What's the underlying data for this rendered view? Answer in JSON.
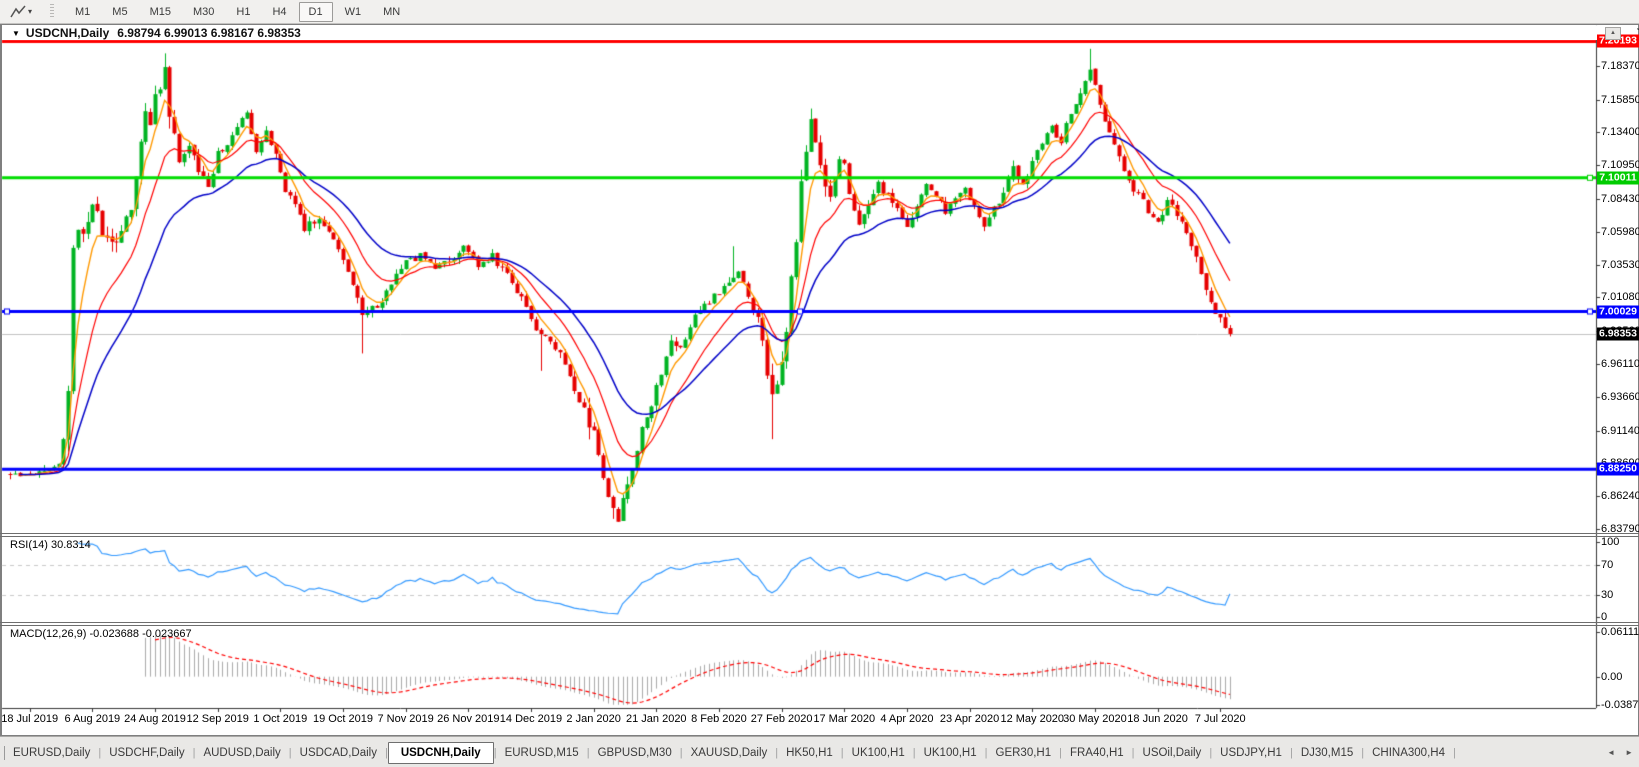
{
  "toolbar": {
    "timeframes": [
      "M1",
      "M5",
      "M15",
      "M30",
      "H1",
      "H4",
      "D1",
      "W1",
      "MN"
    ],
    "active_timeframe": "D1"
  },
  "header": {
    "title": "USDCNH,Daily",
    "ohlc": "6.98794 6.99013 6.98167 6.98353",
    "collapse_icon": "triangle-down"
  },
  "chart_data": {
    "type": "candlestick",
    "symbol": "USDCNH",
    "timeframe": "Daily",
    "open": 6.98794,
    "high": 6.99013,
    "low": 6.98167,
    "close": 6.98353,
    "ylim": [
      6.8379,
      7.2082
    ],
    "price_axis_ticks": [
      "7.20820",
      "7.18370",
      "7.15850",
      "7.13400",
      "7.10950",
      "7.08430",
      "7.05980",
      "7.03530",
      "7.01080",
      "6.98560",
      "6.96110",
      "6.93660",
      "6.91140",
      "6.88690",
      "6.86240",
      "6.83790"
    ],
    "price_tags": [
      {
        "text": "7.20193",
        "price": 7.20193,
        "bg": "#ff0000"
      },
      {
        "text": "7.10011",
        "price": 7.10011,
        "bg": "#00cc00"
      },
      {
        "text": "7.00029",
        "price": 7.00029,
        "bg": "#0000ff"
      },
      {
        "text": "6.98353",
        "price": 6.98353,
        "bg": "#000000"
      },
      {
        "text": "6.88250",
        "price": 6.8825,
        "bg": "#0000ff"
      }
    ],
    "hlines": [
      {
        "price": 7.20193,
        "color": "#ff0000",
        "width": 3
      },
      {
        "price": 7.10011,
        "color": "#00dd00",
        "width": 3
      },
      {
        "price": 7.00029,
        "color": "#0000ff",
        "width": 3
      },
      {
        "price": 6.8825,
        "color": "#0000ff",
        "width": 3
      }
    ],
    "current_price_line": {
      "price": 6.98353,
      "color": "#c0c0c0"
    },
    "x_labels": [
      "18 Jul 2019",
      "6 Aug 2019",
      "24 Aug 2019",
      "12 Sep 2019",
      "1 Oct 2019",
      "19 Oct 2019",
      "7 Nov 2019",
      "26 Nov 2019",
      "14 Dec 2019",
      "2 Jan 2020",
      "21 Jan 2020",
      "8 Feb 2020",
      "27 Feb 2020",
      "17 Mar 2020",
      "4 Apr 2020",
      "23 Apr 2020",
      "12 May 2020",
      "30 May 2020",
      "18 Jun 2020",
      "7 Jul 2020"
    ],
    "x_label_first_bar": 4,
    "x_label_step_bars": 13,
    "bars_total": 254,
    "close_anchors": [
      [
        0,
        6.878
      ],
      [
        4,
        6.879
      ],
      [
        8,
        6.882
      ],
      [
        10,
        6.885
      ],
      [
        11,
        6.901
      ],
      [
        12,
        6.938
      ],
      [
        13,
        7.046
      ],
      [
        14,
        7.062
      ],
      [
        15,
        7.055
      ],
      [
        16,
        7.072
      ],
      [
        17,
        7.085
      ],
      [
        18,
        7.078
      ],
      [
        19,
        7.06
      ],
      [
        21,
        7.048
      ],
      [
        23,
        7.062
      ],
      [
        25,
        7.078
      ],
      [
        26,
        7.098
      ],
      [
        27,
        7.125
      ],
      [
        28,
        7.148
      ],
      [
        29,
        7.142
      ],
      [
        30,
        7.158
      ],
      [
        31,
        7.168
      ],
      [
        32,
        7.178
      ],
      [
        33,
        7.15
      ],
      [
        34,
        7.13
      ],
      [
        35,
        7.112
      ],
      [
        37,
        7.125
      ],
      [
        39,
        7.106
      ],
      [
        41,
        7.092
      ],
      [
        43,
        7.118
      ],
      [
        45,
        7.126
      ],
      [
        47,
        7.14
      ],
      [
        49,
        7.147
      ],
      [
        51,
        7.118
      ],
      [
        53,
        7.133
      ],
      [
        55,
        7.12
      ],
      [
        57,
        7.092
      ],
      [
        59,
        7.079
      ],
      [
        61,
        7.063
      ],
      [
        64,
        7.068
      ],
      [
        67,
        7.056
      ],
      [
        70,
        7.032
      ],
      [
        73,
        6.999
      ],
      [
        76,
        7.003
      ],
      [
        79,
        7.023
      ],
      [
        82,
        7.036
      ],
      [
        85,
        7.043
      ],
      [
        88,
        7.031
      ],
      [
        91,
        7.039
      ],
      [
        94,
        7.049
      ],
      [
        97,
        7.033
      ],
      [
        100,
        7.041
      ],
      [
        103,
        7.029
      ],
      [
        106,
        7.011
      ],
      [
        109,
        6.986
      ],
      [
        112,
        6.976
      ],
      [
        115,
        6.963
      ],
      [
        117,
        6.942
      ],
      [
        119,
        6.927
      ],
      [
        121,
        6.907
      ],
      [
        123,
        6.873
      ],
      [
        125,
        6.852
      ],
      [
        126,
        6.846
      ],
      [
        127,
        6.859
      ],
      [
        129,
        6.882
      ],
      [
        131,
        6.911
      ],
      [
        133,
        6.931
      ],
      [
        135,
        6.956
      ],
      [
        137,
        6.976
      ],
      [
        139,
        6.971
      ],
      [
        141,
        6.991
      ],
      [
        143,
        7.001
      ],
      [
        145,
        7.008
      ],
      [
        147,
        7.016
      ],
      [
        149,
        7.024
      ],
      [
        151,
        7.029
      ],
      [
        153,
        7.012
      ],
      [
        155,
        6.996
      ],
      [
        157,
        6.955
      ],
      [
        158,
        6.935
      ],
      [
        159,
        6.95
      ],
      [
        160,
        6.962
      ],
      [
        161,
        6.988
      ],
      [
        162,
        7.022
      ],
      [
        163,
        7.055
      ],
      [
        164,
        7.095
      ],
      [
        165,
        7.122
      ],
      [
        166,
        7.142
      ],
      [
        167,
        7.128
      ],
      [
        168,
        7.113
      ],
      [
        169,
        7.096
      ],
      [
        170,
        7.088
      ],
      [
        171,
        7.1
      ],
      [
        172,
        7.115
      ],
      [
        173,
        7.108
      ],
      [
        174,
        7.086
      ],
      [
        176,
        7.062
      ],
      [
        178,
        7.081
      ],
      [
        180,
        7.096
      ],
      [
        182,
        7.086
      ],
      [
        184,
        7.076
      ],
      [
        186,
        7.066
      ],
      [
        188,
        7.081
      ],
      [
        190,
        7.096
      ],
      [
        192,
        7.086
      ],
      [
        194,
        7.076
      ],
      [
        196,
        7.086
      ],
      [
        198,
        7.091
      ],
      [
        200,
        7.081
      ],
      [
        202,
        7.066
      ],
      [
        204,
        7.076
      ],
      [
        206,
        7.091
      ],
      [
        208,
        7.106
      ],
      [
        210,
        7.096
      ],
      [
        212,
        7.111
      ],
      [
        214,
        7.126
      ],
      [
        216,
        7.136
      ],
      [
        218,
        7.128
      ],
      [
        220,
        7.149
      ],
      [
        222,
        7.161
      ],
      [
        224,
        7.179
      ],
      [
        225,
        7.168
      ],
      [
        226,
        7.156
      ],
      [
        228,
        7.131
      ],
      [
        230,
        7.119
      ],
      [
        232,
        7.096
      ],
      [
        234,
        7.086
      ],
      [
        236,
        7.076
      ],
      [
        238,
        7.068
      ],
      [
        240,
        7.081
      ],
      [
        242,
        7.073
      ],
      [
        244,
        7.059
      ],
      [
        246,
        7.041
      ],
      [
        248,
        7.019
      ],
      [
        250,
        7.001
      ],
      [
        251,
        6.996
      ],
      [
        252,
        6.988
      ],
      [
        253,
        6.9835
      ]
    ],
    "bar_overrides": {
      "32": {
        "high": 7.193
      },
      "73": {
        "low": 6.969
      },
      "110": {
        "low": 6.956
      },
      "125": {
        "low": 6.8455
      },
      "126": {
        "low": 6.847
      },
      "150": {
        "high": 7.049
      },
      "158": {
        "low": 6.905
      },
      "224": {
        "high": 7.1964
      }
    },
    "moving_averages": [
      {
        "name": "fast",
        "period": 5,
        "color": "#ff9900"
      },
      {
        "name": "medium",
        "period": 13,
        "color": "#ff0000"
      },
      {
        "name": "slow",
        "period": 26,
        "color": "#0000c8"
      }
    ],
    "candle_colors": {
      "up": "#00b422",
      "down": "#e60000"
    },
    "indicators": [
      {
        "name": "RSI",
        "label": "RSI(14)",
        "value": "30.8314",
        "period": 14,
        "levels": [
          "100",
          "70",
          "30",
          "0"
        ],
        "line_color": "#3399ff",
        "range": [
          0,
          100
        ]
      },
      {
        "name": "MACD",
        "label": "MACD(12,26,9)",
        "values": "-0.023688 -0.023667",
        "scale_labels": [
          "0.061119",
          "0.00",
          "-0.038777"
        ],
        "scale_values": [
          0.061119,
          0.0,
          -0.038777
        ],
        "histogram_color": "#aaaaaa",
        "signal_color": "#ff0000"
      }
    ]
  },
  "tabs": {
    "items": [
      "EURUSD,Daily",
      "USDCHF,Daily",
      "AUDUSD,Daily",
      "USDCAD,Daily",
      "USDCNH,Daily",
      "EURUSD,M15",
      "GBPUSD,M30",
      "XAUUSD,Daily",
      "HK50,H1",
      "UK100,H1",
      "UK100,H1",
      "GER30,H1",
      "FRA40,H1",
      "USOil,Daily",
      "USDJPY,H1",
      "DJ30,M15",
      "CHINA300,H4"
    ],
    "active_index": 4,
    "scroll_left_icon": "left-arrow",
    "scroll_right_icon": "right-arrow"
  }
}
